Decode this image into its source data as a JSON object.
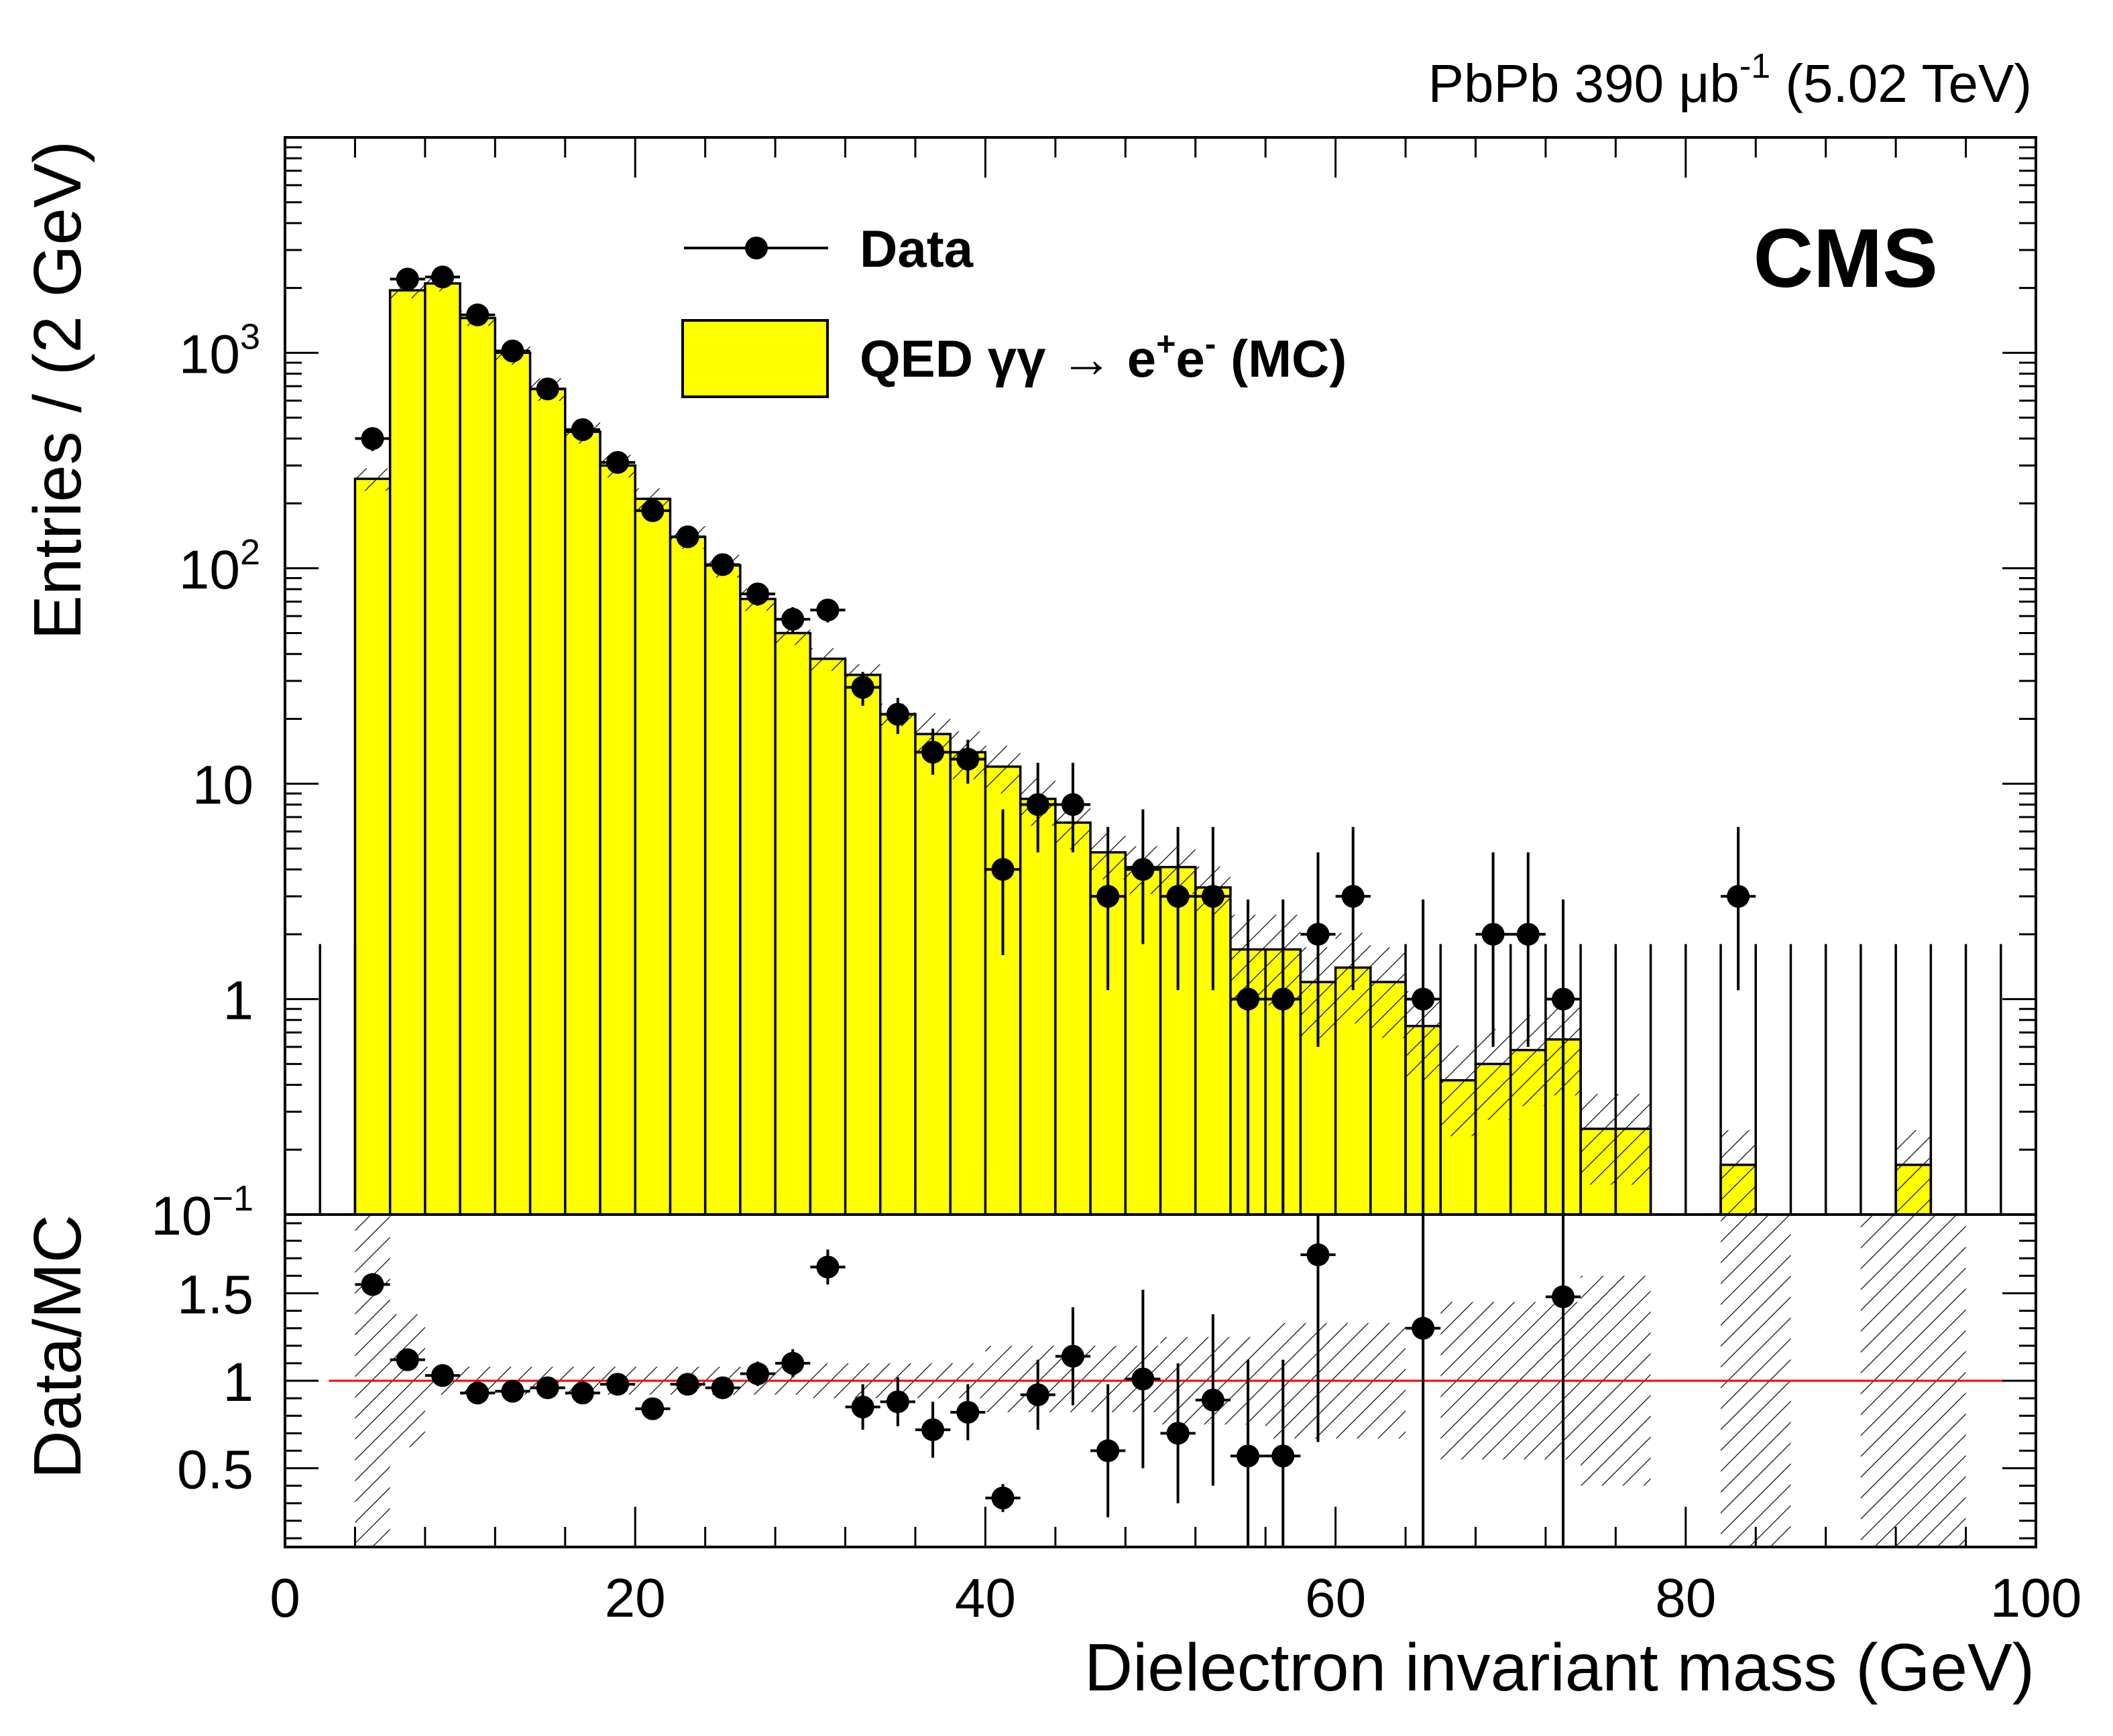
{
  "header": {
    "lumi_pre": "PbPb 390 ",
    "lumi_unit": "μb",
    "lumi_exp": "-1",
    "lumi_post": " (5.02 TeV)",
    "experiment": "CMS"
  },
  "legend": {
    "data_label": "Data",
    "mc_label_pre": "QED  γγ  → e",
    "mc_sup1": "+",
    "mc_mid": "e",
    "mc_sup2": "-",
    "mc_label_post": " (MC)"
  },
  "colors": {
    "mc_fill": "#ffff00",
    "ratio_line": "#ff0000",
    "ink": "#000000"
  },
  "chart_data": [
    {
      "type": "bar",
      "title": "",
      "xlabel": "Dielectron invariant mass (GeV)",
      "ylabel": "Entries / (2 GeV)",
      "log_y": true,
      "xlim": [
        0,
        100
      ],
      "ylim": [
        0.1,
        10000
      ],
      "x_ticks": [
        "0",
        "20",
        "40",
        "60",
        "80",
        "100"
      ],
      "y_ticks": [
        {
          "value": 0.1,
          "base": "10",
          "exp": "−1"
        },
        {
          "value": 1,
          "base": "1",
          "exp": ""
        },
        {
          "value": 10,
          "base": "10",
          "exp": ""
        },
        {
          "value": 100,
          "base": "10",
          "exp": "2"
        },
        {
          "value": 1000,
          "base": "10",
          "exp": "3"
        }
      ],
      "mc": {
        "name": "QED γγ → e+e- (MC)",
        "bin_edges": [
          4,
          6,
          8,
          10,
          12,
          14,
          16,
          18,
          20,
          22,
          24,
          26,
          28,
          30,
          32,
          34,
          36,
          38,
          40,
          42,
          44,
          46,
          48,
          50,
          52,
          54,
          56,
          58,
          60,
          62,
          64,
          66,
          68,
          70,
          72,
          74,
          76,
          78,
          80,
          82,
          84,
          86,
          88,
          90,
          92,
          94,
          96
        ],
        "values": [
          260,
          1950,
          2100,
          1450,
          1000,
          680,
          430,
          300,
          210,
          140,
          103,
          72,
          50,
          38,
          32,
          21,
          17,
          14,
          12,
          8.5,
          6.6,
          4.8,
          4.1,
          4.1,
          3.3,
          1.7,
          1.7,
          1.2,
          1.4,
          1.2,
          0.75,
          0.42,
          0.5,
          0.58,
          0.65,
          0.25,
          0.25,
          0,
          0,
          0.17,
          0,
          0,
          0,
          0,
          0.17,
          0
        ]
      },
      "data": {
        "name": "Data",
        "x": [
          5,
          7,
          9,
          11,
          13,
          15,
          17,
          19,
          21,
          23,
          25,
          27,
          29,
          31,
          33,
          35,
          37,
          39,
          41,
          43,
          45,
          47,
          49,
          51,
          53,
          55,
          57,
          59,
          61,
          65,
          69,
          71,
          73,
          83
        ],
        "y": [
          400,
          2200,
          2250,
          1500,
          1020,
          680,
          440,
          310,
          185,
          140,
          104,
          76,
          58,
          64,
          28,
          21,
          14,
          13,
          4,
          8,
          8,
          3,
          4,
          3,
          3,
          1,
          1,
          2,
          3,
          1,
          2,
          2,
          1,
          3
        ],
        "y_low": [
          350,
          2100,
          2150,
          1420,
          950,
          630,
          400,
          285,
          165,
          125,
          93,
          67,
          50,
          56,
          23,
          17,
          11,
          10,
          1.6,
          4.8,
          4.8,
          1.1,
          1.8,
          1.1,
          1.1,
          0.1,
          0.1,
          0.6,
          1.1,
          0.1,
          0.6,
          0.6,
          0.1,
          1.1
        ],
        "y_high": [
          450,
          2300,
          2350,
          1580,
          1090,
          730,
          480,
          335,
          205,
          155,
          115,
          85,
          66,
          72,
          33,
          25,
          18,
          16,
          7.6,
          12.5,
          12.5,
          6.3,
          7.6,
          6.3,
          6.3,
          2.9,
          2.9,
          4.8,
          6.3,
          2.9,
          4.8,
          4.8,
          2.9,
          6.3
        ]
      },
      "empty_bin_error_up_x": [
        2,
        4,
        64,
        66,
        68,
        70,
        72,
        74,
        76,
        78,
        80,
        82,
        84,
        86,
        88,
        90,
        92,
        94,
        96,
        98
      ],
      "empty_bin_error_up": 1.8
    },
    {
      "type": "scatter",
      "ylabel": "Data/MC",
      "xlim": [
        0,
        100
      ],
      "ylim": [
        0.05,
        1.95
      ],
      "y_ticks": [
        "0.5",
        "1",
        "1.5"
      ],
      "reference_line": 1,
      "uncertainty_bands": [
        {
          "x0": 4,
          "x1": 6,
          "lo": 0.05,
          "hi": 1.95
        },
        {
          "x0": 6,
          "x1": 8,
          "lo": 0.62,
          "hi": 1.38
        },
        {
          "x0": 8,
          "x1": 30,
          "lo": 0.92,
          "hi": 1.08
        },
        {
          "x0": 30,
          "x1": 40,
          "lo": 0.9,
          "hi": 1.1
        },
        {
          "x0": 40,
          "x1": 50,
          "lo": 0.82,
          "hi": 1.2
        },
        {
          "x0": 50,
          "x1": 56,
          "lo": 0.75,
          "hi": 1.25
        },
        {
          "x0": 56,
          "x1": 64,
          "lo": 0.67,
          "hi": 1.33
        },
        {
          "x0": 66,
          "x1": 74,
          "lo": 0.55,
          "hi": 1.45
        },
        {
          "x0": 74,
          "x1": 78,
          "lo": 0.4,
          "hi": 1.6
        },
        {
          "x0": 82,
          "x1": 86,
          "lo": 0.05,
          "hi": 1.95
        },
        {
          "x0": 90,
          "x1": 96,
          "lo": 0.05,
          "hi": 1.95
        }
      ],
      "points": {
        "x": [
          5,
          7,
          9,
          11,
          13,
          15,
          17,
          19,
          21,
          23,
          25,
          27,
          29,
          31,
          33,
          35,
          37,
          39,
          41,
          43,
          45,
          47,
          49,
          51,
          53,
          55,
          57,
          59,
          65,
          73
        ],
        "y": [
          1.55,
          1.12,
          1.03,
          0.93,
          0.94,
          0.96,
          0.93,
          0.98,
          0.84,
          0.98,
          0.96,
          1.04,
          1.1,
          1.65,
          0.85,
          0.88,
          0.72,
          0.82,
          0.33,
          0.92,
          1.14,
          0.6,
          1.01,
          0.7,
          0.89,
          0.57,
          0.57,
          1.72,
          1.3,
          1.48
        ],
        "y_low": [
          1.5,
          1.09,
          1.0,
          0.9,
          0.91,
          0.93,
          0.89,
          0.94,
          0.8,
          0.93,
          0.9,
          0.97,
          1.02,
          1.55,
          0.72,
          0.74,
          0.56,
          0.66,
          0.25,
          0.72,
          0.86,
          0.22,
          0.5,
          0.3,
          0.4,
          0.05,
          0.05,
          0.65,
          0.05,
          0.05
        ],
        "y_high": [
          1.6,
          1.15,
          1.06,
          0.96,
          0.97,
          0.99,
          0.97,
          1.02,
          0.88,
          1.03,
          1.02,
          1.11,
          1.18,
          1.75,
          0.98,
          1.02,
          0.88,
          0.98,
          0.41,
          1.12,
          1.42,
          0.98,
          1.52,
          1.1,
          1.38,
          1.12,
          1.12,
          1.95,
          1.95,
          1.95
        ]
      }
    }
  ]
}
